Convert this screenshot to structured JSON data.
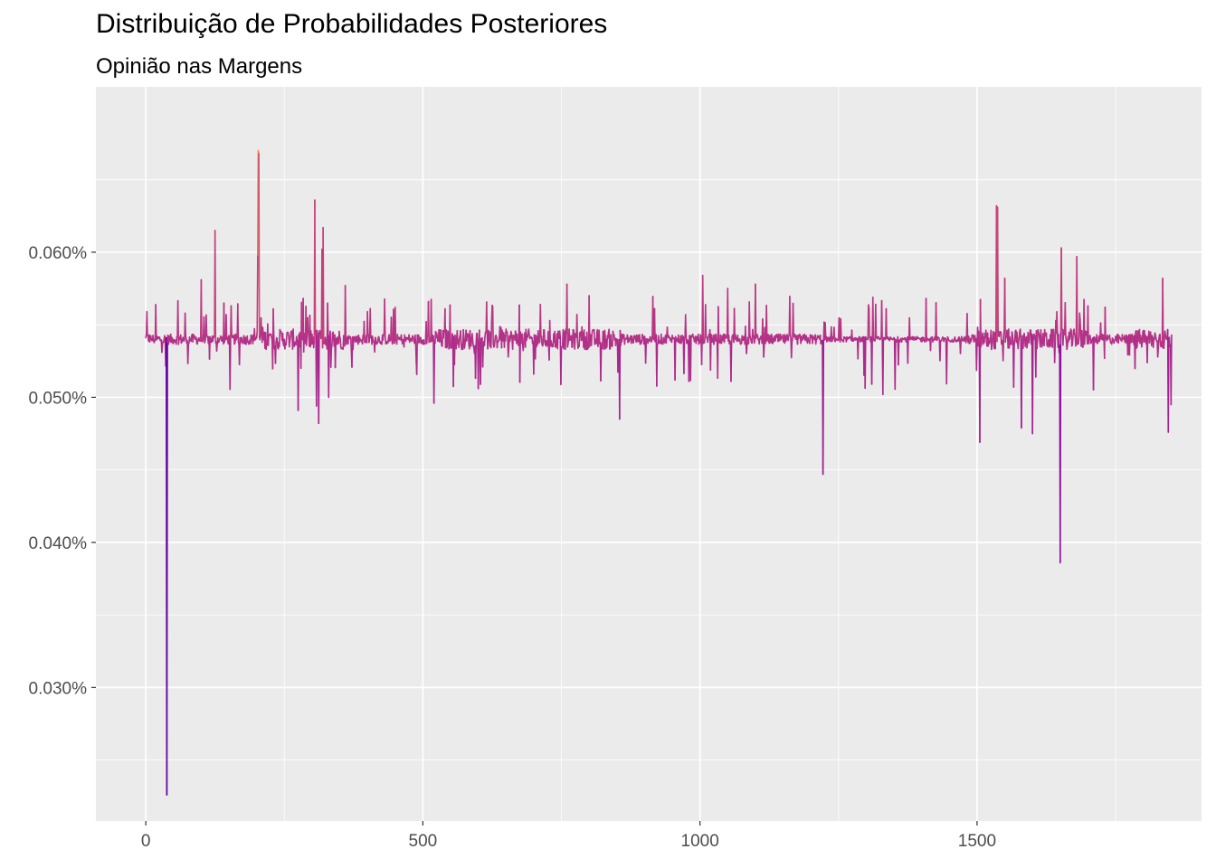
{
  "chart_data": {
    "type": "line",
    "title": "Distribuição de Probabilidades Posteriores",
    "subtitle": "Opinião nas Margens",
    "xlabel": "",
    "ylabel": "",
    "xlim": [
      -90,
      1905
    ],
    "ylim": [
      0.0208,
      0.0714
    ],
    "x_ticks": [
      0,
      500,
      1000,
      1500
    ],
    "x_tick_labels": [
      "0",
      "500",
      "1000",
      "1500"
    ],
    "y_ticks": [
      0.03,
      0.04,
      0.05,
      0.06
    ],
    "y_tick_labels": [
      "0.030%",
      "0.040%",
      "0.050%",
      "0.060%"
    ],
    "grid": true,
    "legend": "none",
    "color_scale": [
      "#0d0887",
      "#7e03a8",
      "#cc4778",
      "#f89540"
    ],
    "n_points": 1852,
    "baseline": 0.054,
    "series": [
      {
        "x": [
          0,
          2,
          6,
          35,
          38,
          100,
          125,
          128,
          200,
          202,
          203,
          204,
          205,
          210,
          230,
          275,
          305,
          308,
          312,
          318,
          320,
          330,
          360,
          400,
          450,
          510,
          520,
          540,
          600,
          700,
          760,
          800,
          855,
          900,
          980,
          1005,
          1050,
          1100,
          1150,
          1222,
          1300,
          1330,
          1400,
          1450,
          1500,
          1505,
          1535,
          1537,
          1540,
          1550,
          1580,
          1600,
          1640,
          1650,
          1652,
          1655,
          1680,
          1700,
          1750,
          1800,
          1835,
          1840,
          1845,
          1850,
          1852
        ],
        "values": [
          0.0541,
          0.0559,
          0.0543,
          0.0538,
          0.0226,
          0.0581,
          0.0615,
          0.0532,
          0.0541,
          0.0598,
          0.067,
          0.0668,
          0.0542,
          0.0538,
          0.0561,
          0.0491,
          0.0636,
          0.0494,
          0.0482,
          0.0602,
          0.0617,
          0.05,
          0.0577,
          0.0559,
          0.0562,
          0.0566,
          0.0496,
          0.0561,
          0.0506,
          0.0516,
          0.0578,
          0.057,
          0.0485,
          0.0542,
          0.0511,
          0.0584,
          0.0575,
          0.0578,
          0.0539,
          0.0447,
          0.054,
          0.0502,
          0.0541,
          0.0539,
          0.0537,
          0.0469,
          0.0632,
          0.0631,
          0.0542,
          0.0582,
          0.0479,
          0.0475,
          0.0524,
          0.0386,
          0.0603,
          0.0536,
          0.0597,
          0.0563,
          0.0542,
          0.0546,
          0.0582,
          0.0543,
          0.0476,
          0.0495,
          0.0541
        ]
      }
    ]
  }
}
